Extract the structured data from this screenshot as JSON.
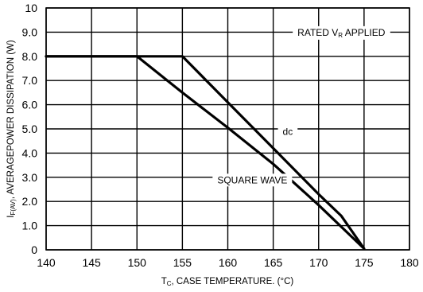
{
  "chart_data": {
    "type": "line",
    "title": "",
    "xlabel": {
      "main": "T",
      "sub": "C",
      "rest": ", CASE  TEMPERATURE. (°C)"
    },
    "ylabel": {
      "main": "I",
      "sub": "F(AV)",
      "rest": ", AVERAGEPOWER DISSIPATION (W)"
    },
    "xlim": [
      140,
      180
    ],
    "ylim": [
      0,
      10
    ],
    "x_ticks": [
      "140",
      "145",
      "150",
      "155",
      "160",
      "165",
      "170",
      "175",
      "180"
    ],
    "y_ticks": [
      "0",
      "1.0",
      "2.0",
      "3.0",
      "4.0",
      "5.0",
      "6.0",
      "7.0",
      "8.0",
      "9.0",
      "10"
    ],
    "grid": true,
    "series": [
      {
        "name": "dc",
        "points": [
          [
            140,
            8.0
          ],
          [
            155,
            8.0
          ],
          [
            160,
            6.1
          ],
          [
            165,
            4.2
          ],
          [
            170,
            2.3
          ],
          [
            172.5,
            1.4
          ],
          [
            175,
            0.05
          ]
        ]
      },
      {
        "name": "SQUARE WAVE",
        "points": [
          [
            140,
            8.0
          ],
          [
            150,
            8.0
          ],
          [
            155,
            6.5
          ],
          [
            160,
            5.05
          ],
          [
            165,
            3.55
          ],
          [
            170,
            1.85
          ],
          [
            175,
            0.05
          ]
        ]
      }
    ],
    "annotations": [
      {
        "id": "rated",
        "text": {
          "main": "RATED V",
          "sub": "R",
          "rest": " APPLIED"
        },
        "x": 172.5,
        "y": 9.0
      },
      {
        "id": "dc",
        "text": "dc",
        "x": 166.6,
        "y": 4.9
      },
      {
        "id": "square",
        "text": "SQUARE WAVE",
        "x": 162.7,
        "y": 2.9
      }
    ]
  }
}
